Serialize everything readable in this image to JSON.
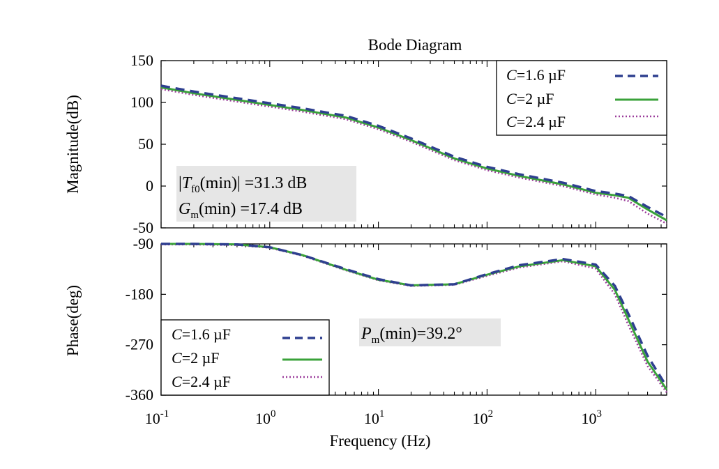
{
  "chart_data": [
    {
      "type": "line",
      "title": "Bode Diagram",
      "xlabel": "",
      "ylabel": "Magnitude(dB)",
      "x_scale": "log",
      "xlim": [
        0.1,
        4500
      ],
      "ylim": [
        -50,
        150
      ],
      "yticks": [
        "150",
        "100",
        "50",
        "0",
        "-50"
      ],
      "x": [
        0.1,
        0.2,
        0.5,
        1,
        2,
        5,
        10,
        20,
        50,
        100,
        200,
        500,
        1000,
        1500,
        2000,
        3000,
        4500
      ],
      "series": [
        {
          "name": "C=1.6 µF",
          "color": "#2e3f8f",
          "style": "dashed",
          "values": [
            120,
            113,
            105,
            99,
            93,
            84,
            72,
            57,
            35,
            23,
            14,
            4,
            -6,
            -9,
            -12,
            -25,
            -37
          ]
        },
        {
          "name": "C=2 µF",
          "color": "#3aa23a",
          "style": "solid",
          "values": [
            118,
            111,
            103,
            97,
            91,
            82,
            70,
            55,
            33,
            21,
            12,
            2,
            -8,
            -11,
            -14,
            -28,
            -41
          ]
        },
        {
          "name": "C=2.4 µF",
          "color": "#9b3d9b",
          "style": "dotted",
          "values": [
            116,
            109,
            101,
            95,
            89,
            80,
            68,
            53,
            31,
            19,
            10,
            0,
            -10,
            -14,
            -18,
            -33,
            -45
          ]
        }
      ],
      "legend_position": "top-right",
      "annotations": [
        {
          "lines": [
            "|T_f0(min)| =31.3 dB",
            "G_m(min) =17.4 dB"
          ]
        }
      ]
    },
    {
      "type": "line",
      "title": "",
      "xlabel": "Frequency (Hz)",
      "ylabel": "Phase(deg)",
      "x_scale": "log",
      "xlim": [
        0.1,
        4500
      ],
      "xticks": [
        0.1,
        1,
        10,
        100,
        1000
      ],
      "xtick_labels": [
        "10^-1",
        "10^0",
        "10^1",
        "10^2",
        "10^3"
      ],
      "ylim": [
        -360,
        -90
      ],
      "yticks": [
        "-90",
        "-180",
        "-270",
        "-360"
      ],
      "x": [
        0.1,
        0.2,
        0.5,
        1,
        2,
        5,
        10,
        20,
        50,
        100,
        200,
        500,
        1000,
        1500,
        2000,
        3000,
        4500
      ],
      "series": [
        {
          "name": "C=1.6 µF",
          "color": "#2e3f8f",
          "style": "dashed",
          "values": [
            -90,
            -90,
            -91,
            -96,
            -110,
            -135,
            -153,
            -164,
            -162,
            -144,
            -128,
            -117,
            -127,
            -165,
            -215,
            -290,
            -345
          ]
        },
        {
          "name": "C=2 µF",
          "color": "#3aa23a",
          "style": "solid",
          "values": [
            -90,
            -90,
            -91,
            -96,
            -110,
            -136,
            -154,
            -164,
            -162,
            -145,
            -130,
            -119,
            -130,
            -172,
            -225,
            -300,
            -350
          ]
        },
        {
          "name": "C=2.4 µF",
          "color": "#9b3d9b",
          "style": "dotted",
          "values": [
            -91,
            -91,
            -92,
            -97,
            -111,
            -137,
            -155,
            -165,
            -163,
            -147,
            -132,
            -121,
            -134,
            -180,
            -235,
            -308,
            -355
          ]
        }
      ],
      "legend_position": "bottom-left",
      "annotations": [
        {
          "lines": [
            "P_m(min)=39.2°"
          ]
        }
      ]
    }
  ]
}
